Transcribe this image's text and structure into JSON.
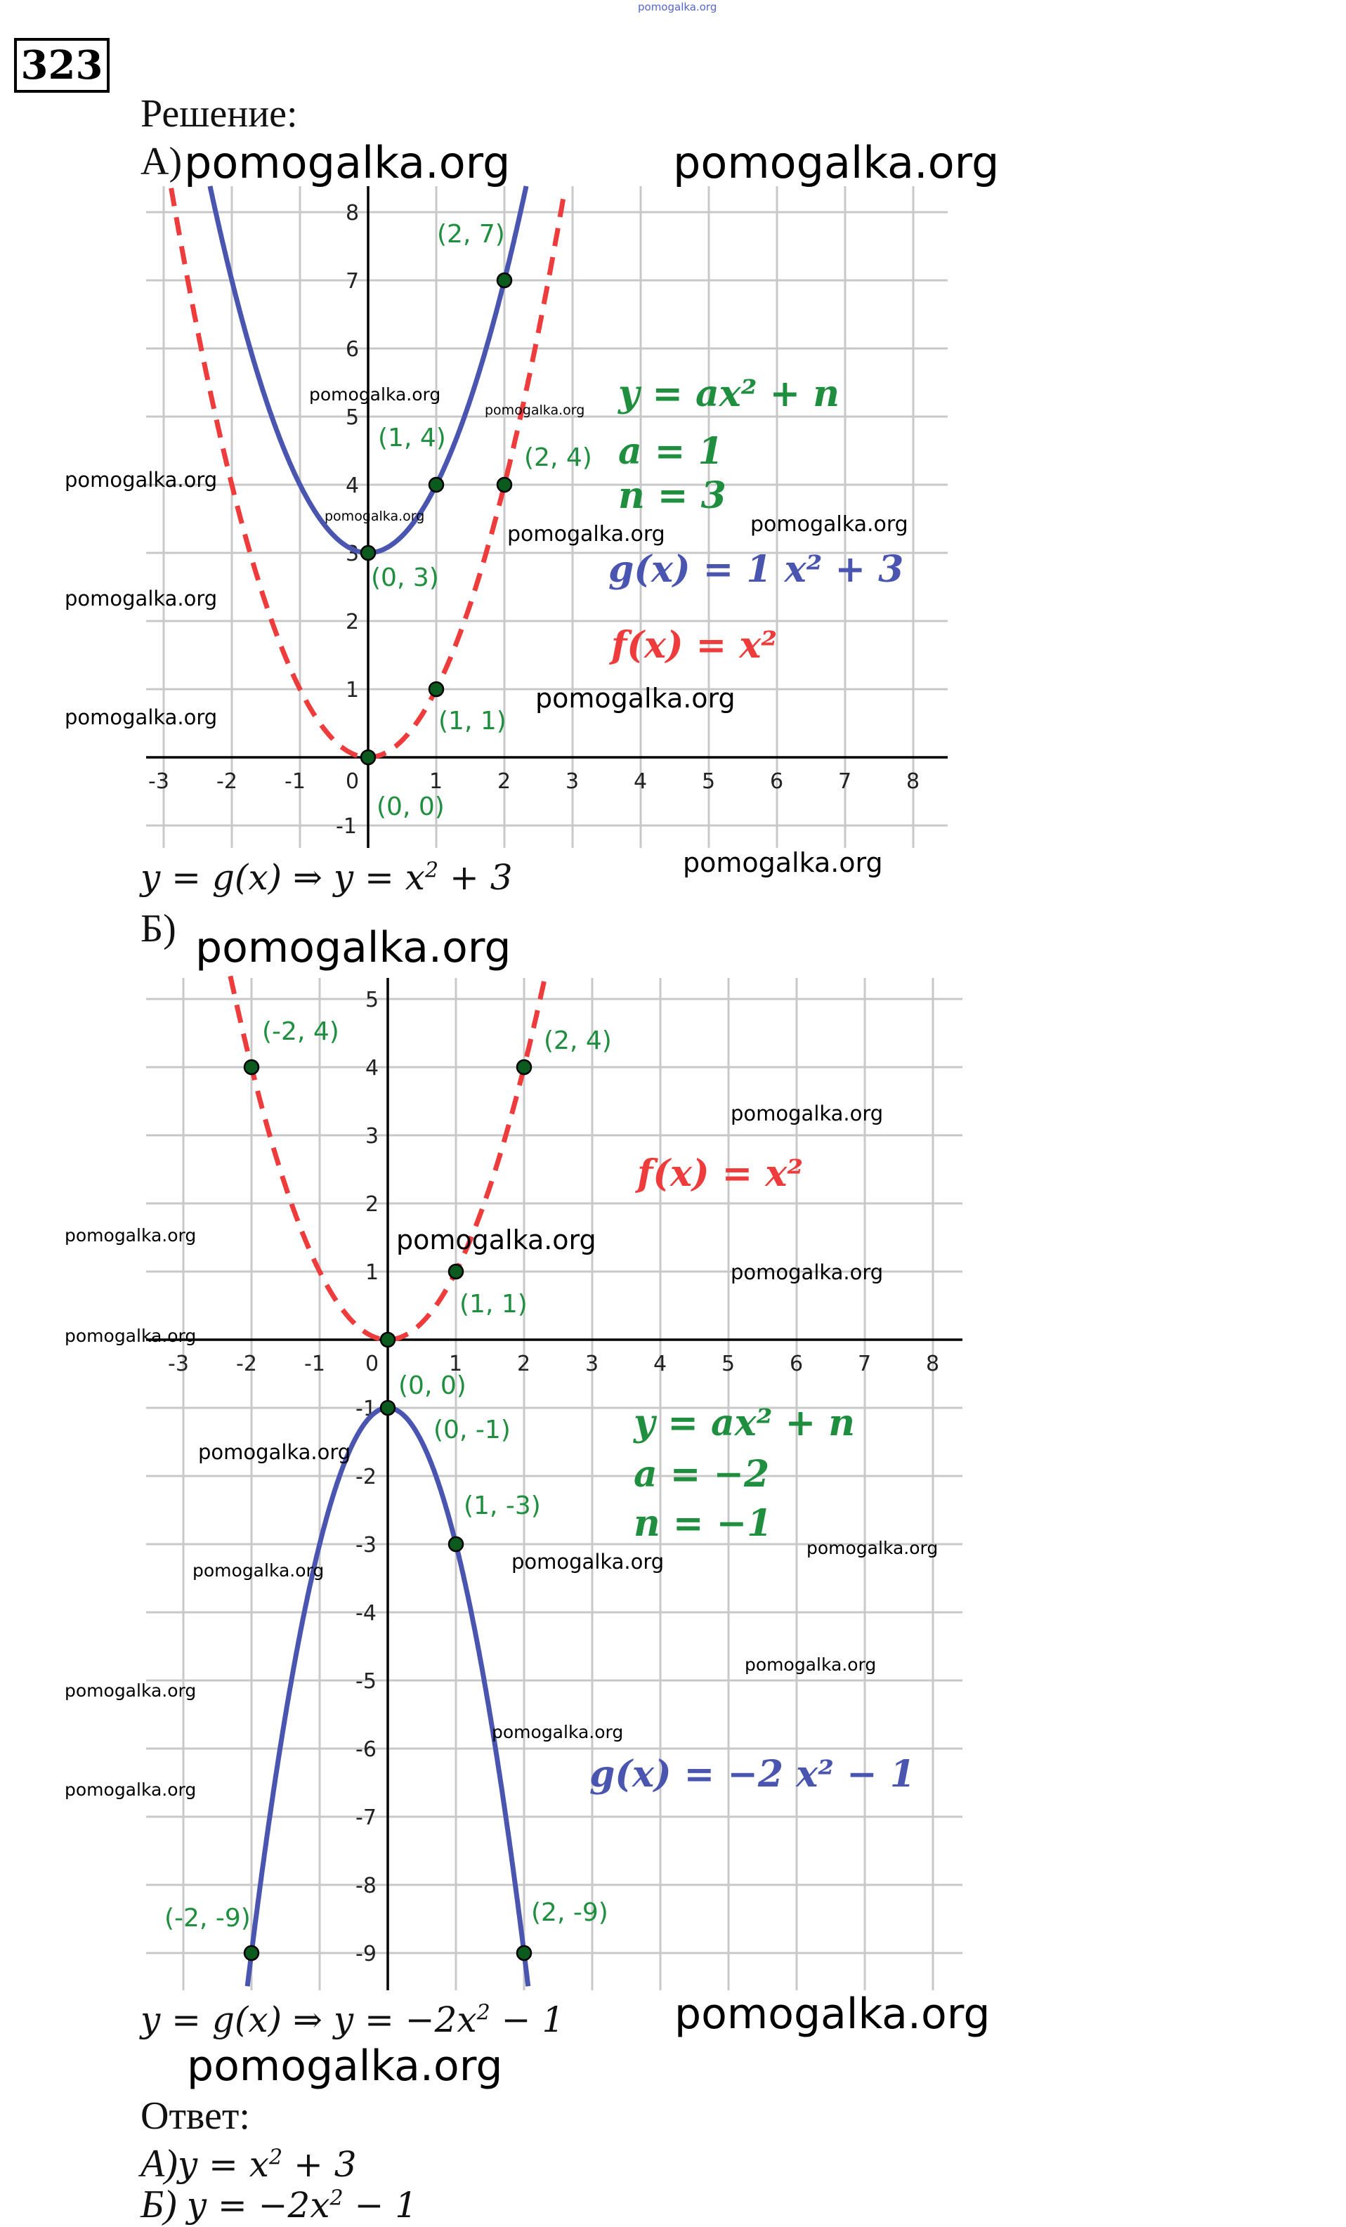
{
  "problem_number": "323",
  "solution_label": "Решение:",
  "watermark": "pomogalka.org",
  "colors": {
    "g_curve": "#4a55b0",
    "f_curve": "#ee3b3b",
    "labels": "#1f8f3f",
    "points": "#0b5a1e",
    "grid": "#c8c8c8"
  },
  "part_a": {
    "label": "А)",
    "x_ticks": [
      "-3",
      "-2",
      "-1",
      "0",
      "1",
      "2",
      "3",
      "4",
      "5",
      "6",
      "7",
      "8"
    ],
    "y_ticks": [
      "-1",
      "1",
      "2",
      "3",
      "4",
      "5",
      "6",
      "7",
      "8"
    ],
    "g": {
      "a": 1,
      "n": 3
    },
    "f": {
      "a": 1,
      "n": 0
    },
    "points": [
      {
        "x": 2,
        "y": 7,
        "label": "(2, 7)"
      },
      {
        "x": 1,
        "y": 4,
        "label": "(1, 4)"
      },
      {
        "x": 2,
        "y": 4,
        "label": "(2, 4)"
      },
      {
        "x": 0,
        "y": 3,
        "label": "(0, 3)"
      },
      {
        "x": 1,
        "y": 1,
        "label": "(1, 1)"
      },
      {
        "x": 0,
        "y": 0,
        "label": "(0, 0)"
      }
    ],
    "formula_general": "y = ax² + n",
    "formula_a": "a = 1",
    "formula_n": "n = 3",
    "formula_g": "g(x) = 1 x² + 3",
    "formula_f": "f(x) = x²",
    "result_lhs": "y = g(x) ⇒ y = x",
    "result_exp": "2",
    "result_rhs": " + 3"
  },
  "part_b": {
    "label": "Б)",
    "x_ticks": [
      "-3",
      "-2",
      "-1",
      "0",
      "1",
      "2",
      "3",
      "4",
      "5",
      "6",
      "7",
      "8"
    ],
    "y_ticks": [
      "5",
      "4",
      "3",
      "2",
      "1",
      "-1",
      "-2",
      "-3",
      "-4",
      "-5",
      "-6",
      "-7",
      "-8",
      "-9"
    ],
    "g": {
      "a": -2,
      "n": -1
    },
    "f": {
      "a": 1,
      "n": 0
    },
    "points": [
      {
        "x": -2,
        "y": 4,
        "label": "(-2, 4)"
      },
      {
        "x": 2,
        "y": 4,
        "label": "(2, 4)"
      },
      {
        "x": 1,
        "y": 1,
        "label": "(1, 1)"
      },
      {
        "x": 0,
        "y": 0,
        "label": "(0, 0)"
      },
      {
        "x": 0,
        "y": -1,
        "label": "(0, -1)"
      },
      {
        "x": 1,
        "y": -3,
        "label": "(1, -3)"
      },
      {
        "x": -2,
        "y": -9,
        "label": "(-2, -9)"
      },
      {
        "x": 2,
        "y": -9,
        "label": "(2, -9)"
      }
    ],
    "formula_f": "f(x) = x²",
    "formula_general": "y = ax² + n",
    "formula_a": "a = −2",
    "formula_n": "n = −1",
    "formula_g": "g(x) = −2 x² − 1",
    "result_lhs": "y = g(x) ⇒ y = −2x",
    "result_exp": "2",
    "result_rhs": " − 1"
  },
  "answer": {
    "label": "Ответ:",
    "a_prefix": "А)",
    "a_lhs": "y = x",
    "a_exp": "2",
    "a_rhs": " + 3",
    "b_prefix": "Б) ",
    "b_lhs": "y = −2x",
    "b_exp": "2",
    "b_rhs": " − 1"
  }
}
